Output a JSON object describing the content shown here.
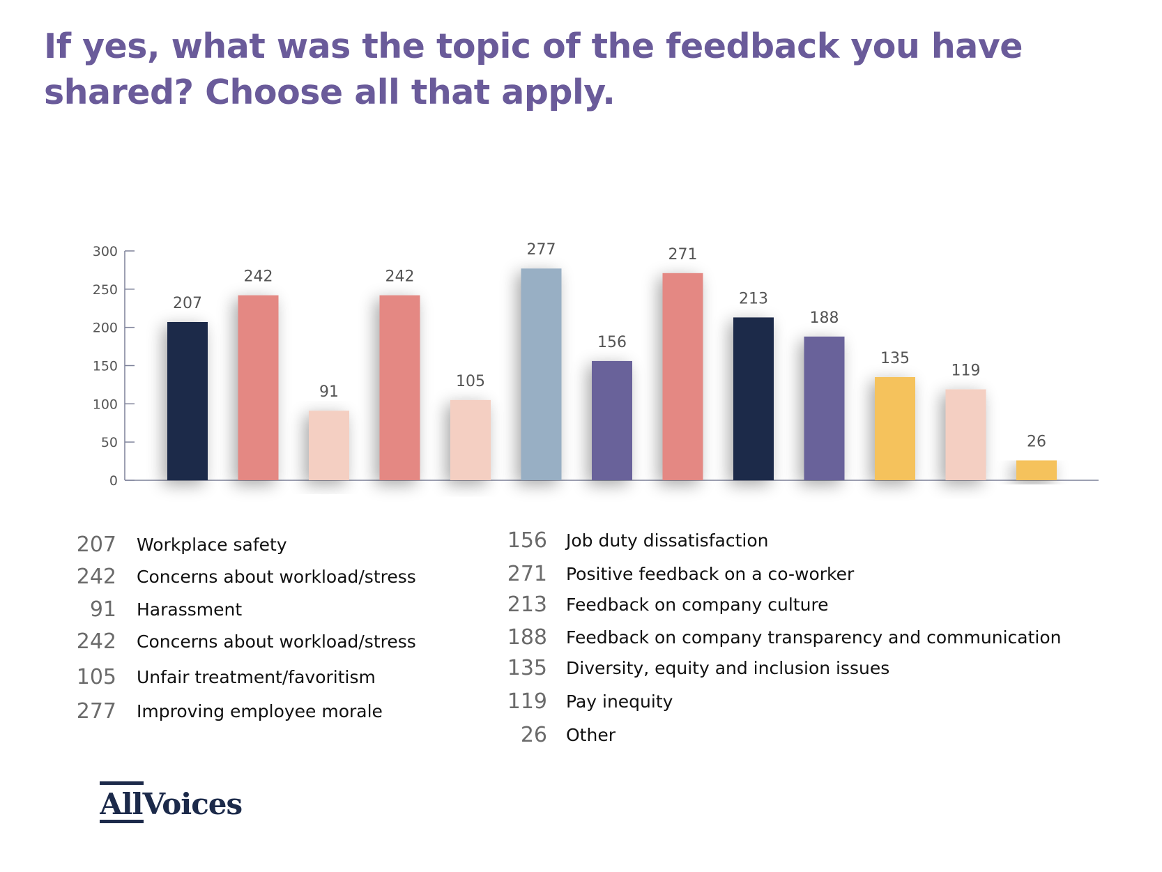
{
  "title": "If yes, what was the topic of the feedback you have shared? Choose all that apply.",
  "chart_data": {
    "type": "bar",
    "title": "If yes, what was the topic of the feedback you have shared? Choose all that apply.",
    "ylim": [
      0,
      300
    ],
    "yticks": [
      "0",
      "50",
      "100",
      "150",
      "200",
      "250",
      "300"
    ],
    "grid": false,
    "values": [
      207,
      242,
      91,
      242,
      105,
      277,
      156,
      271,
      213,
      188,
      135,
      119,
      26
    ],
    "colors": [
      "#1c2a4a",
      "#e48883",
      "#f4cfc2",
      "#e48883",
      "#f4cfc2",
      "#98afc4",
      "#69629a",
      "#e48883",
      "#1c2a4a",
      "#69629a",
      "#f5c25c",
      "#f4cfc2",
      "#f5c25c"
    ],
    "data_labels": [
      "207",
      "242",
      "91",
      "242",
      "105",
      "277",
      "156",
      "271",
      "213",
      "188",
      "135",
      "119",
      "26"
    ]
  },
  "legend": {
    "left": [
      {
        "num": "207",
        "label": "Workplace safety"
      },
      {
        "num": "242",
        "label": "Concerns about workload/stress"
      },
      {
        "num": "91",
        "label": "Harassment"
      },
      {
        "num": "242",
        "label": "Concerns about workload/stress"
      },
      {
        "num": "105",
        "label": "Unfair treatment/favoritism"
      },
      {
        "num": "277",
        "label": "Improving employee morale"
      }
    ],
    "right": [
      {
        "num": "156",
        "label": "Job duty dissatisfaction"
      },
      {
        "num": "271",
        "label": "Positive feedback on a co-worker"
      },
      {
        "num": "213",
        "label": "Feedback on company culture"
      },
      {
        "num": "188",
        "label": "Feedback on company transparency and communication"
      },
      {
        "num": "135",
        "label": "Diversity, equity and inclusion issues"
      },
      {
        "num": "119",
        "label": "Pay inequity"
      },
      {
        "num": "26",
        "label": "Other"
      }
    ]
  },
  "logo": {
    "text": "AllVoices",
    "color": "#1c2a4a"
  }
}
